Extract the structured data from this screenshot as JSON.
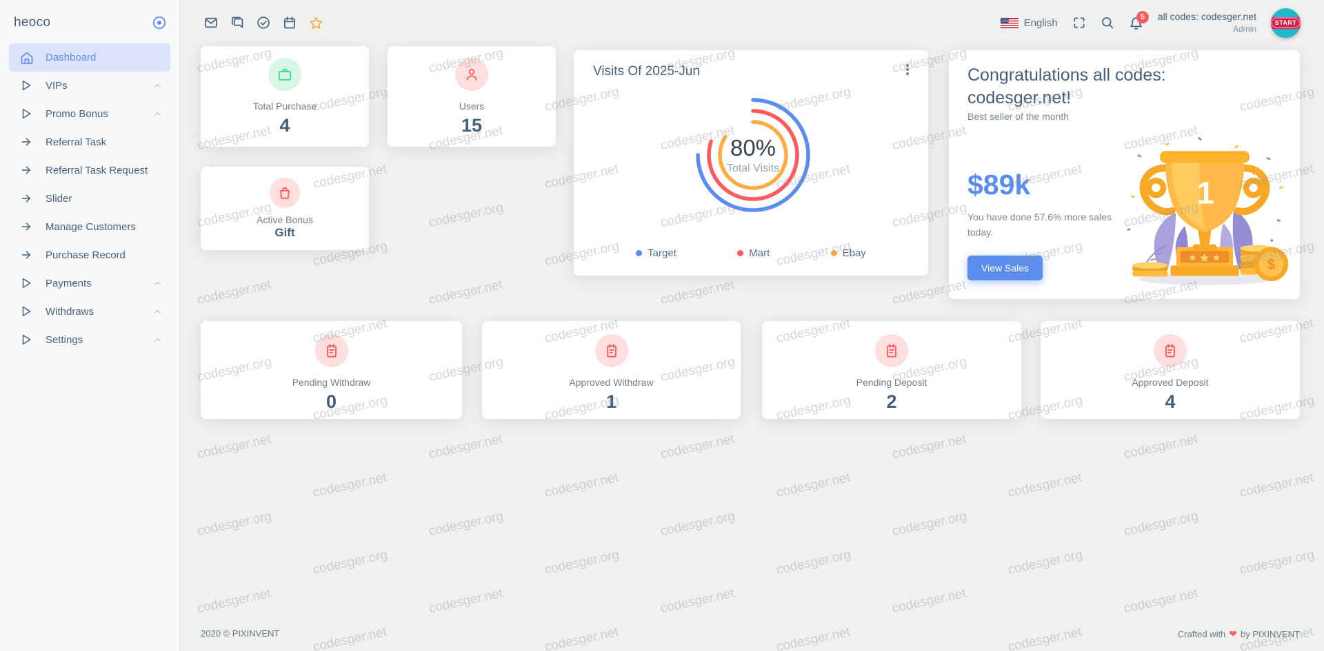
{
  "brand": {
    "name": "heoco"
  },
  "sidebar": {
    "items": [
      {
        "label": "Dashboard",
        "icon": "home",
        "active": true,
        "chevron": false
      },
      {
        "label": "VIPs",
        "icon": "play",
        "active": false,
        "chevron": true
      },
      {
        "label": "Promo Bonus",
        "icon": "play",
        "active": false,
        "chevron": true
      },
      {
        "label": "Referral Task",
        "icon": "arrow",
        "active": false,
        "chevron": false
      },
      {
        "label": "Referral Task Request",
        "icon": "arrow",
        "active": false,
        "chevron": false
      },
      {
        "label": "Slider",
        "icon": "arrow",
        "active": false,
        "chevron": false
      },
      {
        "label": "Manage Customers",
        "icon": "arrow",
        "active": false,
        "chevron": false
      },
      {
        "label": "Purchase Record",
        "icon": "arrow",
        "active": false,
        "chevron": false
      },
      {
        "label": "Payments",
        "icon": "play",
        "active": false,
        "chevron": true
      },
      {
        "label": "Withdraws",
        "icon": "play",
        "active": false,
        "chevron": true
      },
      {
        "label": "Settings",
        "icon": "play",
        "active": false,
        "chevron": true
      }
    ]
  },
  "header": {
    "language": "English",
    "notification_count": "5",
    "user_name": "all codes: codesger.net",
    "user_role": "Admin",
    "avatar_text": "START"
  },
  "stats": {
    "top": [
      {
        "label": "Total Purchase",
        "value": "4",
        "icon": "briefcase",
        "tone": "green"
      },
      {
        "label": "Users",
        "value": "15",
        "icon": "user",
        "tone": "red"
      },
      {
        "label": "Active Bonus",
        "value": "Gift",
        "icon": "bag",
        "tone": "red"
      }
    ],
    "bottom": [
      {
        "label": "Pending Withdraw",
        "value": "0",
        "icon": "clipboard",
        "tone": "red"
      },
      {
        "label": "Approved Withdraw",
        "value": "1",
        "icon": "clipboard",
        "tone": "red"
      },
      {
        "label": "Pending Deposit",
        "value": "2",
        "icon": "clipboard",
        "tone": "red"
      },
      {
        "label": "Approved Deposit",
        "value": "4",
        "icon": "clipboard",
        "tone": "red"
      }
    ]
  },
  "chart_card": {
    "title": "Visits Of 2025-Jun",
    "chart_data": {
      "type": "radialBar",
      "series": [
        {
          "name": "Target",
          "value": 75,
          "color": "#5a8dee"
        },
        {
          "name": "Mart",
          "value": 80,
          "color": "#ff5b5c"
        },
        {
          "name": "Ebay",
          "value": 84,
          "color": "#fdac41"
        }
      ],
      "center_value": "80%",
      "center_label": "Total Visits",
      "legend_position": "bottom",
      "start_angle_deg": 0,
      "max": 100
    }
  },
  "congrats": {
    "title": "Congratulations all codes: codesger.net!",
    "subtitle": "Best seller of the month",
    "amount": "$89k",
    "description": "You have done 57.6% more sales today.",
    "button_label": "View Sales",
    "trophy_rank": "1"
  },
  "footer": {
    "left": "2020 © PIXINVENT",
    "right_prefix": "Crafted with",
    "heart": "❤",
    "right_suffix": "by PIXINVENT"
  },
  "watermarks": {
    "texts": [
      "codesger.org",
      "codesger.net"
    ]
  },
  "colors": {
    "primary": "#5a8dee",
    "success": "#39da8a",
    "danger": "#ff5b5c",
    "warning": "#fdac41",
    "heading": "#475f7b",
    "background": "#eff1f1"
  }
}
